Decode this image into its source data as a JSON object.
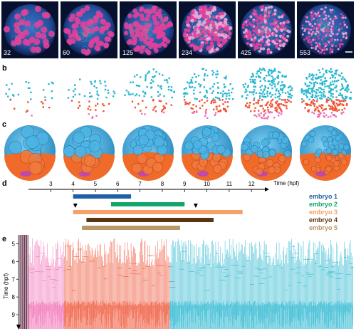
{
  "panel_labels": [
    "a",
    "b",
    "c",
    "d",
    "e"
  ],
  "panel_a": {
    "cell_counts": [
      "32",
      "60",
      "125",
      "234",
      "425",
      "553"
    ]
  },
  "panel_d": {
    "xlabel": "Time (hpf)",
    "x_ticks": [
      "3",
      "4",
      "5",
      "6",
      "7",
      "8",
      "9",
      "10",
      "11",
      "12"
    ],
    "embryos": [
      {
        "name": "embryo 1",
        "color": "#1e5fa8",
        "start": 4.0,
        "end": 6.6
      },
      {
        "name": "embryo 2",
        "color": "#12a66b",
        "start": 5.7,
        "end": 9.0
      },
      {
        "name": "embryo 3",
        "color": "#f4a067",
        "start": 4.0,
        "end": 11.6
      },
      {
        "name": "embryo 4",
        "color": "#5a3512",
        "start": 4.6,
        "end": 10.3
      },
      {
        "name": "embryo 5",
        "color": "#b8976a",
        "start": 4.4,
        "end": 8.8
      }
    ],
    "markers": [
      4.1,
      9.5
    ]
  },
  "panel_e": {
    "ylabel": "Time (hpf)",
    "y_ticks": [
      "5",
      "6",
      "7",
      "8",
      "9"
    ],
    "colors": {
      "blastoderm_top": "#27b6cf",
      "margin": "#ee5133",
      "ysl": "#f06fb5",
      "early": "#4b0d2c"
    }
  },
  "colors": {
    "blue_cells": "#3aa6d8",
    "orange_cells": "#f06a2a",
    "pink_cells": "#c04aa8"
  }
}
